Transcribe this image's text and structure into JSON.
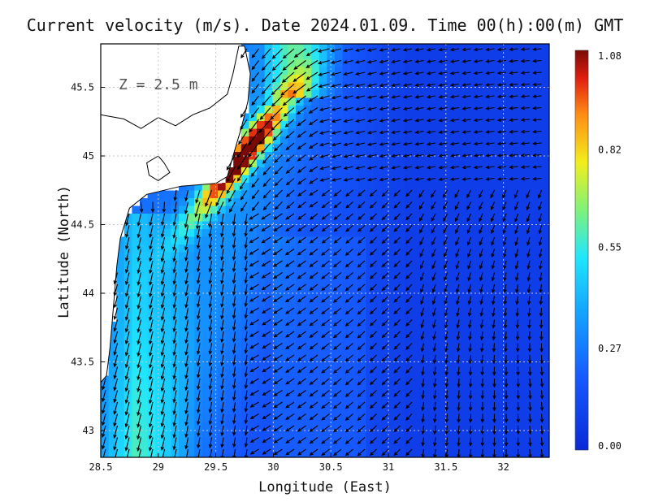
{
  "chart_data": {
    "type": "vector-field",
    "title": "Current velocity (m/s). Date 2024.01.09. Time 00(h):00(m) GMT",
    "xlabel": "Longitude (East)",
    "ylabel": "Latitude (North)",
    "depth_label": "Z = 2.5 m",
    "xlim": [
      28.5,
      32.4
    ],
    "ylim": [
      42.8,
      45.8
    ],
    "x_ticks": [
      28.5,
      29,
      29.5,
      30,
      30.5,
      31,
      31.5,
      32
    ],
    "x_tick_labels": [
      "28.5",
      "29",
      "29.5",
      "30",
      "30.5",
      "31",
      "31.5",
      "32"
    ],
    "y_ticks": [
      43,
      43.5,
      44,
      44.5,
      45,
      45.5
    ],
    "y_tick_labels": [
      "43",
      "43.5",
      "44",
      "44.5",
      "45",
      "45.5"
    ],
    "grid": true,
    "colorbar": {
      "min": 0.0,
      "max": 1.08,
      "ticks": [
        1.08,
        0.82,
        0.55,
        0.27,
        0.0
      ],
      "tick_labels": [
        "1.08",
        "0.82",
        "0.55",
        "0.27",
        "0.00"
      ],
      "colormap": "jet"
    },
    "coastline": [
      [
        28.5,
        45.3
      ],
      [
        28.7,
        45.27
      ],
      [
        28.85,
        45.2
      ],
      [
        29.0,
        45.28
      ],
      [
        29.15,
        45.22
      ],
      [
        29.3,
        45.3
      ],
      [
        29.45,
        45.35
      ],
      [
        29.6,
        45.45
      ],
      [
        29.65,
        45.6
      ],
      [
        29.7,
        45.8
      ],
      [
        29.75,
        45.8
      ],
      [
        29.8,
        45.6
      ],
      [
        29.78,
        45.4
      ],
      [
        29.72,
        45.2
      ],
      [
        29.65,
        45.0
      ],
      [
        29.6,
        44.85
      ],
      [
        29.5,
        44.8
      ],
      [
        29.2,
        44.78
      ],
      [
        28.9,
        44.72
      ],
      [
        28.75,
        44.62
      ],
      [
        28.67,
        44.4
      ],
      [
        28.64,
        44.2
      ],
      [
        28.62,
        44.0
      ],
      [
        28.6,
        43.8
      ],
      [
        28.58,
        43.6
      ],
      [
        28.55,
        43.4
      ],
      [
        28.5,
        43.35
      ]
    ],
    "danube_lake": [
      [
        28.9,
        44.95
      ],
      [
        29.0,
        45.0
      ],
      [
        29.05,
        44.95
      ],
      [
        29.1,
        44.88
      ],
      [
        29.0,
        44.82
      ],
      [
        28.92,
        44.86
      ],
      [
        28.9,
        44.95
      ]
    ],
    "current_jet": {
      "description": "strong southward coastal current",
      "peak_speed": 1.08,
      "peak_lon": 29.78,
      "peak_lat": 45.05
    }
  }
}
